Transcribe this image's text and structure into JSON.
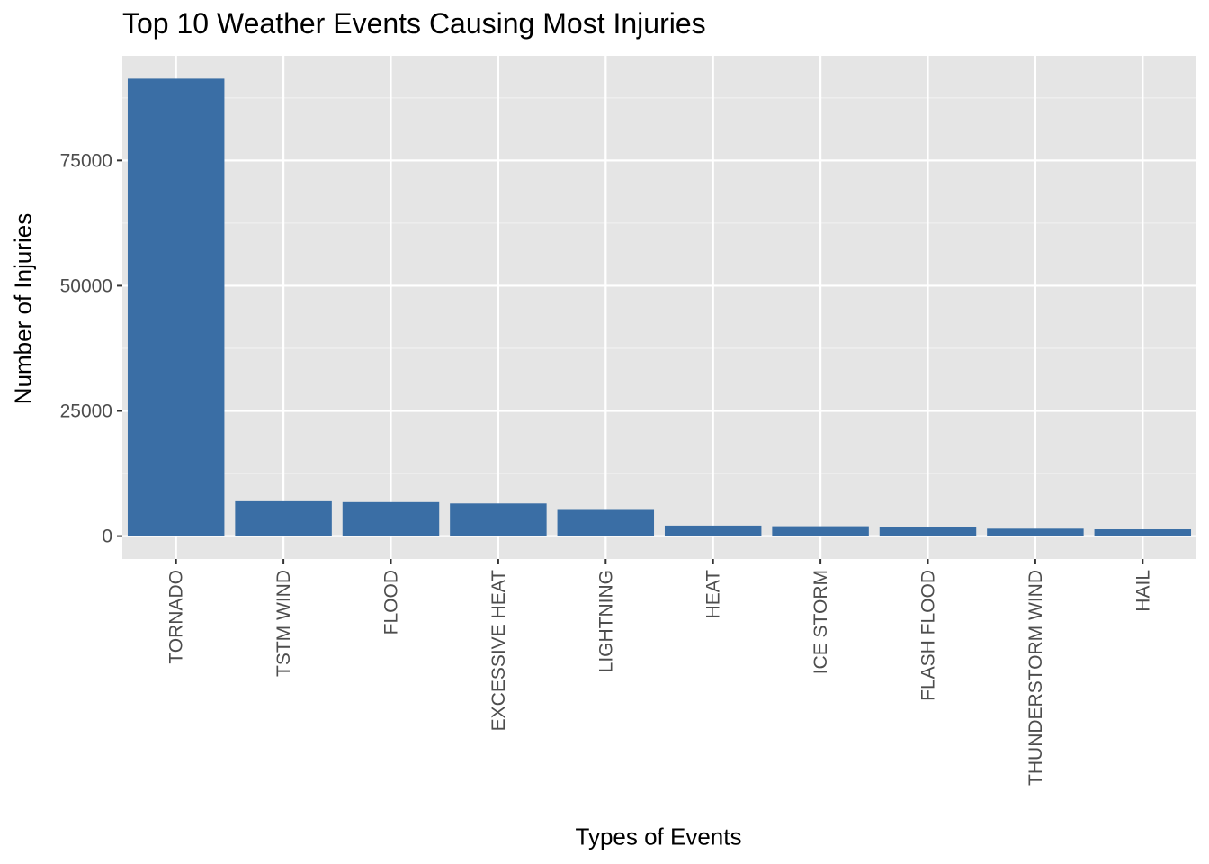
{
  "chart_data": {
    "type": "bar",
    "title": "Top 10 Weather Events Causing Most Injuries",
    "xlabel": "Types of Events",
    "ylabel": "Number of Injuries",
    "categories": [
      "TORNADO",
      "TSTM WIND",
      "FLOOD",
      "EXCESSIVE HEAT",
      "LIGHTNING",
      "HEAT",
      "ICE STORM",
      "FLASH FLOOD",
      "THUNDERSTORM WIND",
      "HAIL"
    ],
    "values": [
      91346,
      6957,
      6789,
      6525,
      5230,
      2100,
      1975,
      1777,
      1488,
      1361
    ],
    "ylim": [
      -4567,
      95913
    ],
    "yticks": [
      0,
      25000,
      50000,
      75000
    ],
    "ytick_labels": [
      "0",
      "25000",
      "50000",
      "75000"
    ],
    "grid": true,
    "legend": "none",
    "colors": {
      "bar": "#3a6ea5",
      "panel": "#e5e5e5",
      "grid_major": "#ffffff",
      "grid_minor": "#f2f2f2",
      "tick_text": "#4d4d4d",
      "tick_mark": "#333333"
    }
  }
}
